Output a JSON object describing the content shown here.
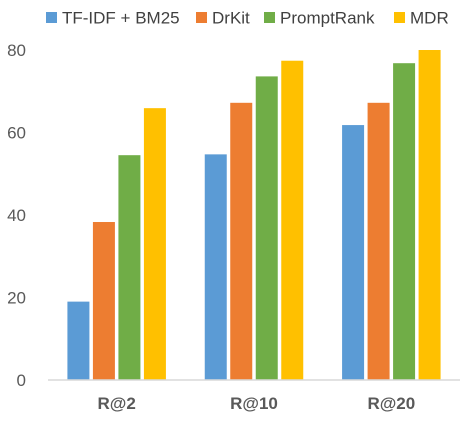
{
  "chart_data": {
    "type": "bar",
    "categories": [
      "R@2",
      "R@10",
      "R@20"
    ],
    "series": [
      {
        "name": "TF-IDF + BM25",
        "color": "#5B9BD5",
        "values": [
          19,
          54.7,
          61.8
        ]
      },
      {
        "name": "DrKit",
        "color": "#ED7D31",
        "values": [
          38.3,
          67.2,
          67.2
        ]
      },
      {
        "name": "PromptRank",
        "color": "#70AD47",
        "values": [
          54.5,
          73.6,
          76.8
        ]
      },
      {
        "name": "MDR",
        "color": "#FFC000",
        "values": [
          65.9,
          77.4,
          80.0
        ]
      }
    ],
    "yticks": [
      0,
      20,
      40,
      60,
      80
    ],
    "ylim": [
      0,
      80
    ],
    "grid": false,
    "legend_position": "top",
    "title": "",
    "xlabel": "",
    "ylabel": ""
  }
}
